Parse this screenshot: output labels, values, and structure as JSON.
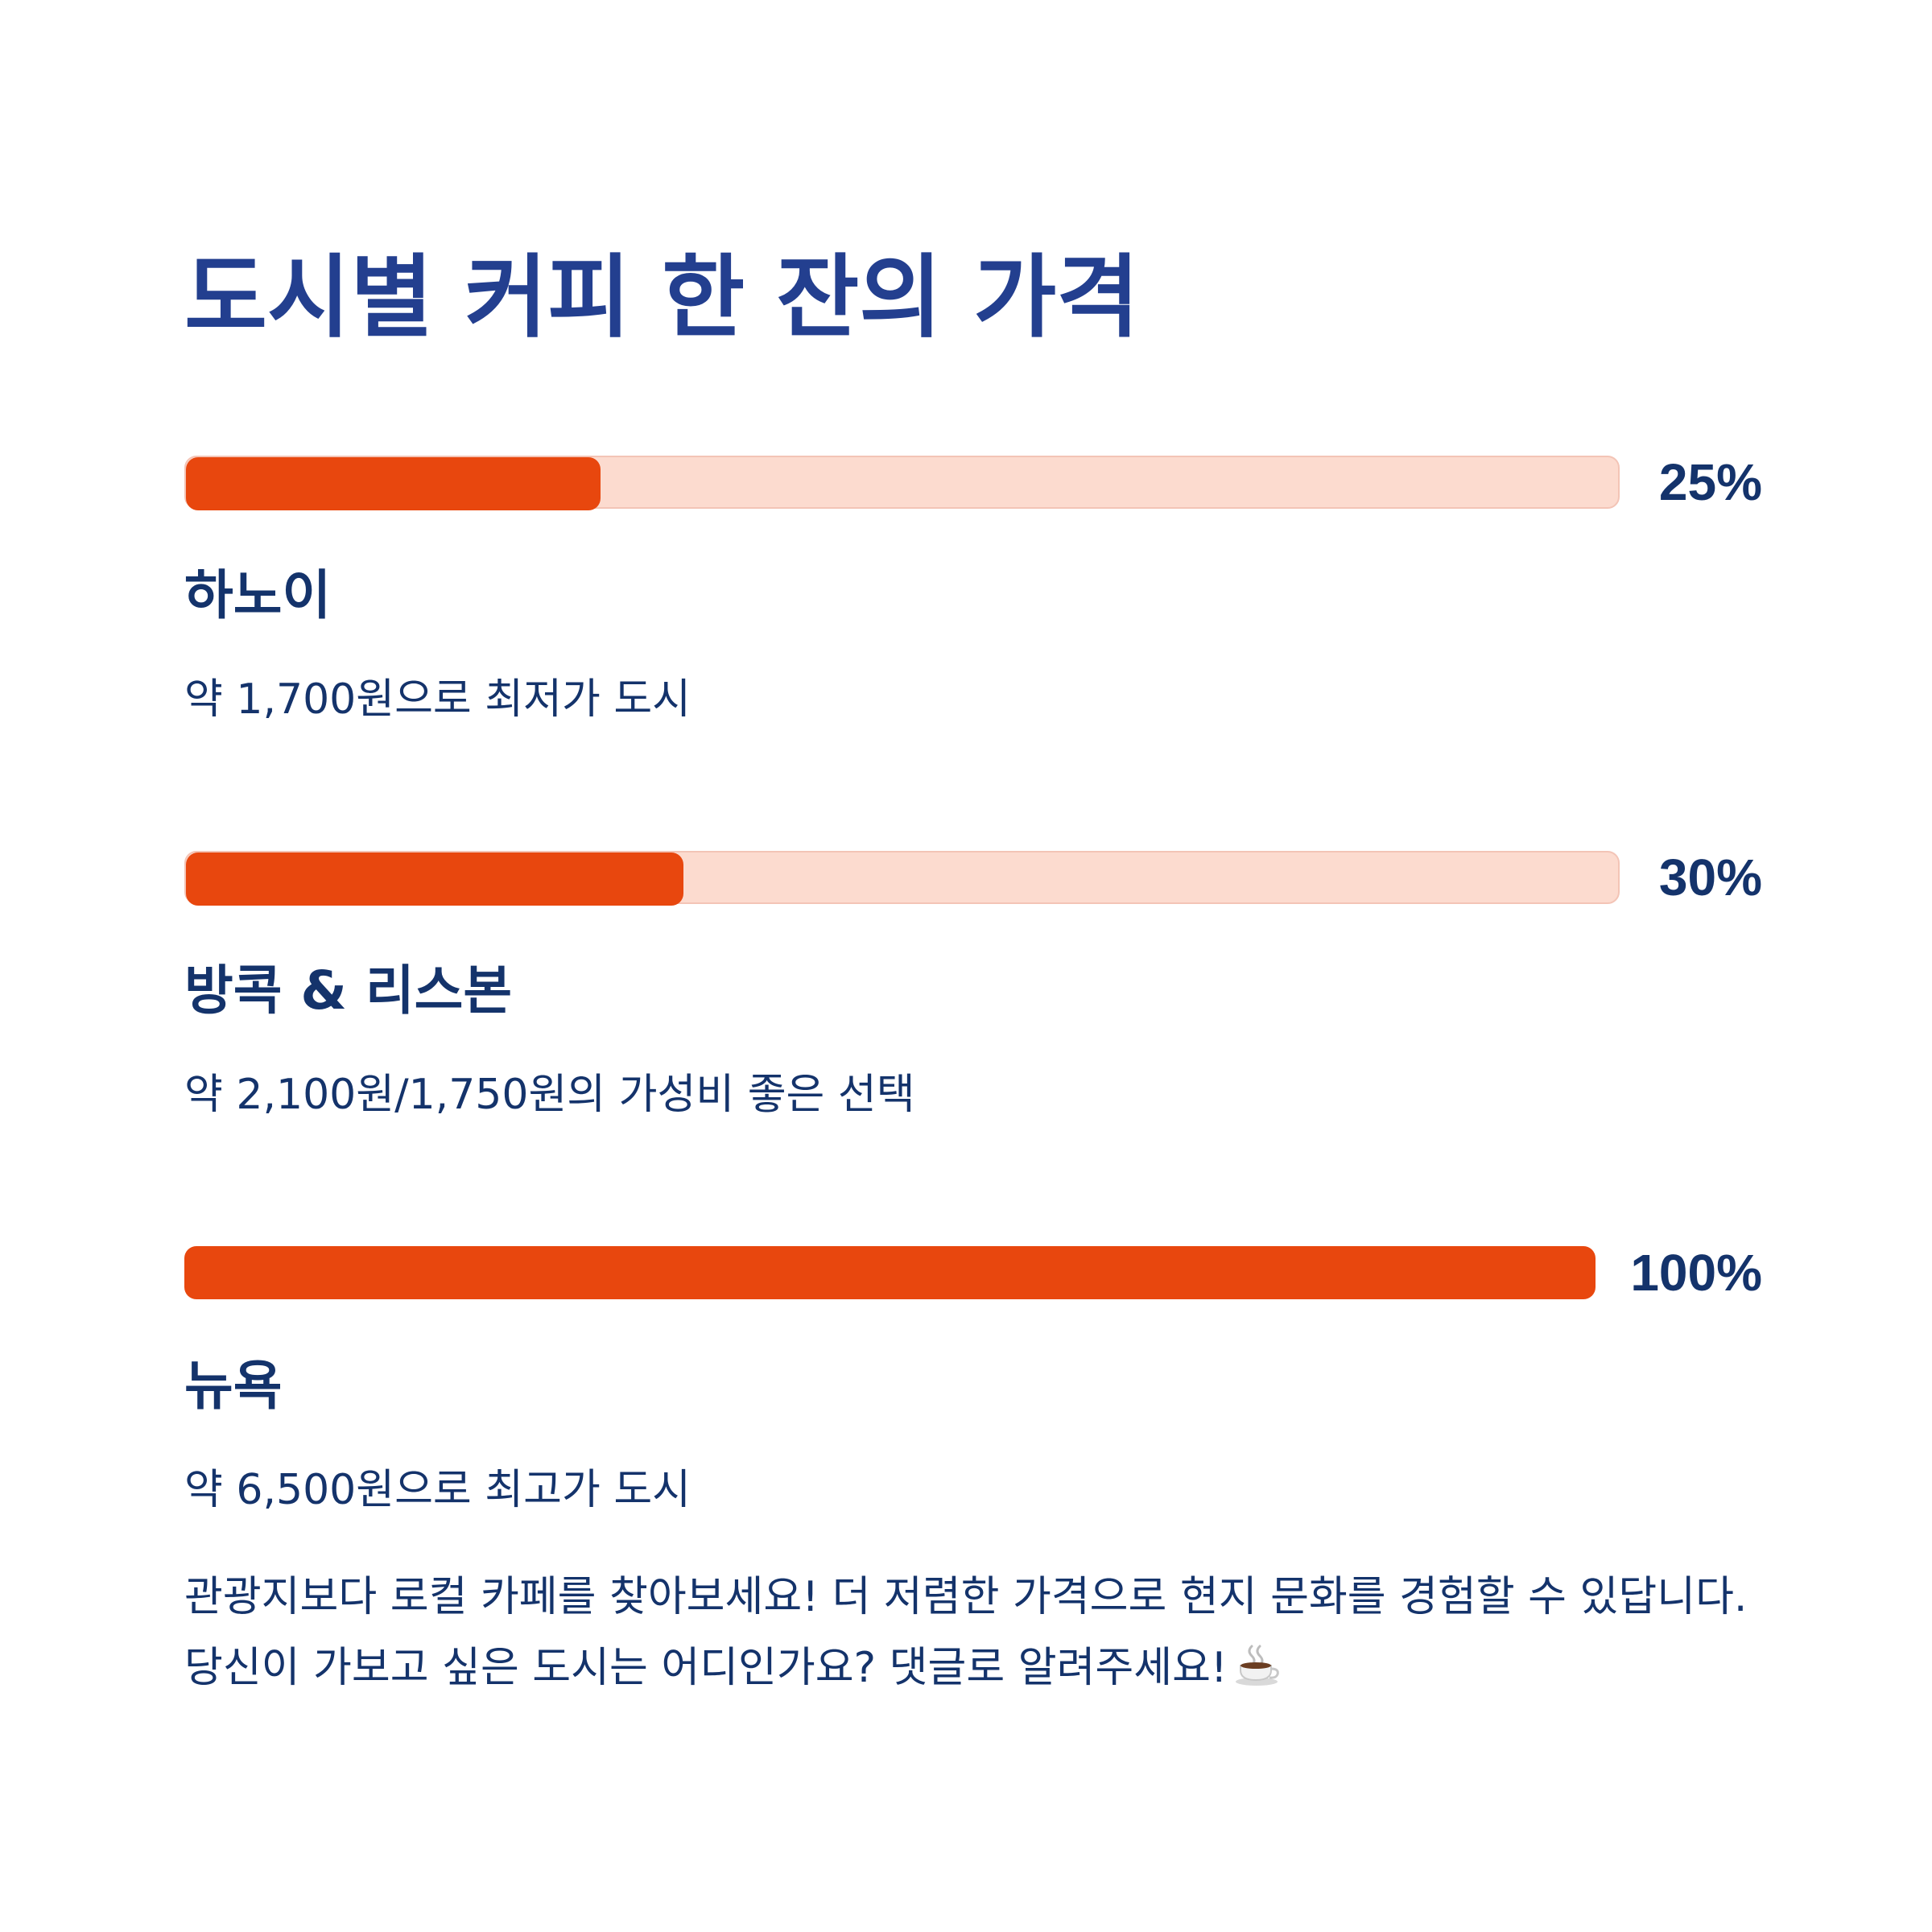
{
  "title": "도시별 커피 한 잔의 가격",
  "colors": {
    "title": "#233f8f",
    "text": "#14336b",
    "bar_fill": "#e8470e",
    "bar_track": "#fcdbcf"
  },
  "items": [
    {
      "percent_label": "25%",
      "city": "하노이",
      "description": "약 1,700원으로 최저가 도시"
    },
    {
      "percent_label": "30%",
      "city": "방콕 & 리스본",
      "description": "약 2,100원/1,750원의 가성비 좋은 선택"
    },
    {
      "percent_label": "100%",
      "city": "뉴욕",
      "description": "약 6,500원으로 최고가 도시"
    }
  ],
  "footer": {
    "text": "관광지보다 로컬 카페를 찾아보세요! 더 저렴한 가격으로 현지 문화를 경험할 수 있답니다. 당신이 가보고 싶은 도시는 어디인가요? 댓글로 알려주세요!",
    "icon": "coffee-cup-icon"
  },
  "chart_data": {
    "type": "bar",
    "title": "도시별 커피 한 잔의 가격",
    "categories": [
      "하노이",
      "방콕 & 리스본",
      "뉴욕"
    ],
    "values": [
      25,
      30,
      100
    ],
    "ylim": [
      0,
      100
    ],
    "grid": false
  }
}
